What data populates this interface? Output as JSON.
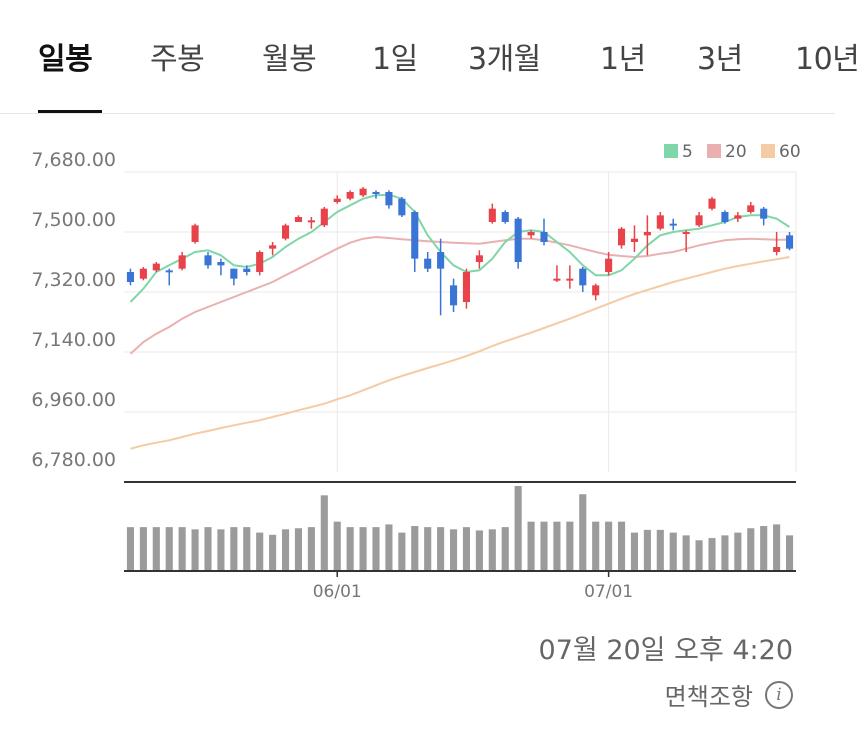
{
  "tabs": [
    {
      "label": "일봉",
      "active": true
    },
    {
      "label": "주봉"
    },
    {
      "label": "월봉"
    },
    {
      "label": "1일"
    },
    {
      "label": "3개월"
    },
    {
      "label": "1년"
    },
    {
      "label": "3년"
    },
    {
      "label": "10년"
    }
  ],
  "colors": {
    "up": "#e8434a",
    "down": "#3a75d6",
    "ma5": "#7fd6a8",
    "ma20": "#eab0b0",
    "ma60": "#f4cba3",
    "volume": "#9b9b9b",
    "grid": "#e9e9e9",
    "axis": "#333333"
  },
  "chart_data": {
    "type": "candlestick",
    "y_ticks": [
      "7,680.00",
      "7,500.00",
      "7,320.00",
      "7,140.00",
      "6,960.00",
      "6,780.00"
    ],
    "ylim": [
      6780,
      7680
    ],
    "x_ticks": [
      {
        "label": "06/01",
        "index": 16
      },
      {
        "label": "07/01",
        "index": 37
      }
    ],
    "legend": [
      {
        "name": "5",
        "color": "#7fd6a8"
      },
      {
        "name": "20",
        "color": "#eab0b0"
      },
      {
        "name": "60",
        "color": "#f4cba3"
      }
    ],
    "candles": [
      [
        7380,
        7350,
        7390,
        7340
      ],
      [
        7360,
        7390,
        7395,
        7355
      ],
      [
        7385,
        7405,
        7410,
        7380
      ],
      [
        7385,
        7380,
        7390,
        7340
      ],
      [
        7390,
        7430,
        7440,
        7385
      ],
      [
        7470,
        7520,
        7525,
        7465
      ],
      [
        7430,
        7400,
        7440,
        7390
      ],
      [
        7410,
        7400,
        7420,
        7370
      ],
      [
        7390,
        7360,
        7390,
        7340
      ],
      [
        7390,
        7380,
        7400,
        7370
      ],
      [
        7380,
        7440,
        7445,
        7370
      ],
      [
        7450,
        7460,
        7470,
        7430
      ],
      [
        7480,
        7520,
        7525,
        7475
      ],
      [
        7530,
        7545,
        7550,
        7530
      ],
      [
        7530,
        7535,
        7545,
        7510
      ],
      [
        7520,
        7570,
        7575,
        7515
      ],
      [
        7590,
        7600,
        7610,
        7585
      ],
      [
        7600,
        7620,
        7625,
        7595
      ],
      [
        7610,
        7630,
        7635,
        7605
      ],
      [
        7620,
        7615,
        7625,
        7600
      ],
      [
        7620,
        7580,
        7625,
        7570
      ],
      [
        7600,
        7550,
        7605,
        7545
      ],
      [
        7560,
        7420,
        7565,
        7380
      ],
      [
        7420,
        7390,
        7440,
        7380
      ],
      [
        7440,
        7390,
        7480,
        7250
      ],
      [
        7340,
        7280,
        7360,
        7260
      ],
      [
        7290,
        7380,
        7390,
        7270
      ],
      [
        7410,
        7430,
        7445,
        7390
      ],
      [
        7530,
        7570,
        7585,
        7525
      ],
      [
        7560,
        7530,
        7565,
        7525
      ],
      [
        7540,
        7410,
        7545,
        7390
      ],
      [
        7490,
        7500,
        7505,
        7480
      ],
      [
        7500,
        7470,
        7540,
        7460
      ],
      [
        7360,
        7360,
        7400,
        7350
      ],
      [
        7360,
        7360,
        7400,
        7330
      ],
      [
        7390,
        7340,
        7395,
        7320
      ],
      [
        7310,
        7340,
        7345,
        7295
      ],
      [
        7380,
        7420,
        7440,
        7370
      ],
      [
        7460,
        7510,
        7515,
        7450
      ],
      [
        7470,
        7480,
        7520,
        7440
      ],
      [
        7490,
        7500,
        7550,
        7430
      ],
      [
        7510,
        7550,
        7560,
        7505
      ],
      [
        7525,
        7520,
        7540,
        7505
      ],
      [
        7495,
        7500,
        7505,
        7440
      ],
      [
        7520,
        7550,
        7560,
        7515
      ],
      [
        7570,
        7600,
        7605,
        7565
      ],
      [
        7560,
        7530,
        7565,
        7525
      ],
      [
        7540,
        7550,
        7560,
        7530
      ],
      [
        7560,
        7580,
        7590,
        7555
      ],
      [
        7570,
        7540,
        7575,
        7520
      ],
      [
        7440,
        7455,
        7500,
        7430
      ],
      [
        7490,
        7450,
        7500,
        7445
      ]
    ],
    "ma5": [
      7290,
      7330,
      7380,
      7400,
      7420,
      7440,
      7445,
      7430,
      7400,
      7395,
      7405,
      7425,
      7455,
      7480,
      7500,
      7530,
      7560,
      7580,
      7600,
      7610,
      7612,
      7600,
      7560,
      7490,
      7440,
      7400,
      7380,
      7385,
      7420,
      7470,
      7500,
      7505,
      7500,
      7470,
      7440,
      7400,
      7370,
      7370,
      7385,
      7420,
      7460,
      7490,
      7500,
      7505,
      7510,
      7520,
      7530,
      7545,
      7550,
      7550,
      7540,
      7515
    ],
    "ma20": [
      7135,
      7170,
      7195,
      7215,
      7240,
      7260,
      7275,
      7290,
      7305,
      7320,
      7335,
      7350,
      7370,
      7390,
      7410,
      7430,
      7450,
      7468,
      7480,
      7485,
      7482,
      7478,
      7475,
      7472,
      7470,
      7468,
      7466,
      7465,
      7470,
      7475,
      7480,
      7480,
      7475,
      7468,
      7460,
      7450,
      7440,
      7432,
      7428,
      7425,
      7428,
      7435,
      7440,
      7450,
      7460,
      7468,
      7475,
      7478,
      7480,
      7478,
      7477,
      7477
    ],
    "ma60": [
      6850,
      6860,
      6868,
      6875,
      6885,
      6895,
      6903,
      6912,
      6920,
      6928,
      6935,
      6945,
      6955,
      6965,
      6975,
      6985,
      6998,
      7010,
      7025,
      7040,
      7055,
      7068,
      7080,
      7092,
      7103,
      7115,
      7128,
      7142,
      7158,
      7172,
      7185,
      7198,
      7212,
      7226,
      7240,
      7255,
      7270,
      7285,
      7300,
      7314,
      7326,
      7338,
      7350,
      7360,
      7370,
      7380,
      7390,
      7398,
      7405,
      7412,
      7418,
      7425
    ],
    "volume": [
      80,
      80,
      80,
      80,
      80,
      76,
      80,
      76,
      80,
      80,
      70,
      66,
      76,
      78,
      80,
      138,
      90,
      80,
      80,
      80,
      85,
      70,
      82,
      80,
      80,
      76,
      80,
      74,
      76,
      80,
      155,
      90,
      90,
      90,
      90,
      140,
      90,
      90,
      90,
      70,
      75,
      75,
      70,
      65,
      56,
      60,
      65,
      70,
      78,
      82,
      85,
      65
    ]
  },
  "footer": {
    "timestamp": "07월 20일 오후 4:20",
    "disclaimer": "면책조항",
    "info_icon": "info-icon"
  }
}
